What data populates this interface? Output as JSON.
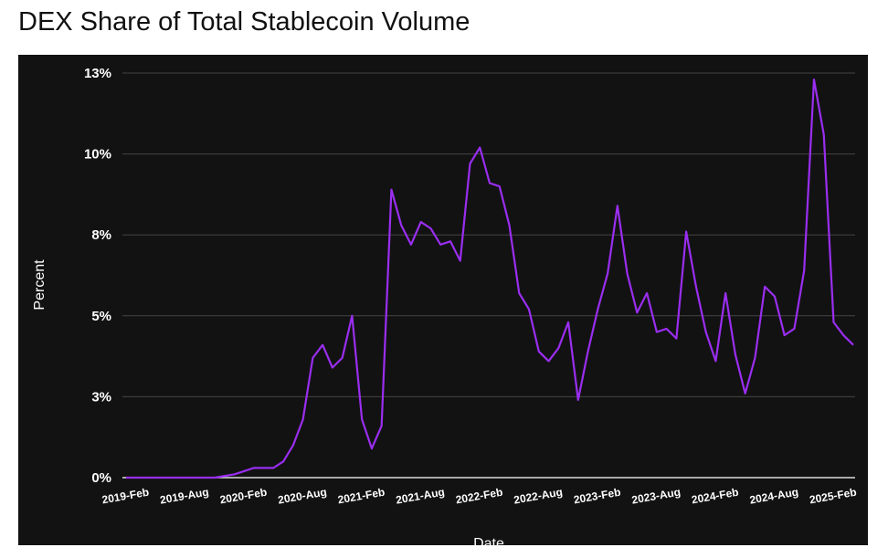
{
  "chart_data": {
    "type": "line",
    "title": "DEX Share of Total Stablecoin Volume",
    "x_label": "Date",
    "y_label": "Percent",
    "categories": [
      "2019-Feb",
      null,
      null,
      null,
      null,
      null,
      "2019-Aug",
      null,
      null,
      null,
      null,
      null,
      "2020-Feb",
      null,
      null,
      null,
      null,
      null,
      "2020-Aug",
      null,
      null,
      null,
      null,
      null,
      "2021-Feb",
      null,
      null,
      null,
      null,
      null,
      "2021-Aug",
      null,
      null,
      null,
      null,
      null,
      "2022-Feb",
      null,
      null,
      null,
      null,
      null,
      "2022-Aug",
      null,
      null,
      null,
      null,
      null,
      "2023-Feb",
      null,
      null,
      null,
      null,
      null,
      "2023-Aug",
      null,
      null,
      null,
      null,
      null,
      "2024-Feb",
      null,
      null,
      null,
      null,
      null,
      "2024-Aug",
      null,
      null,
      null,
      null,
      null,
      "2025-Feb",
      null,
      null
    ],
    "series": [
      {
        "name": "DEX share",
        "color": "#9a2ef0",
        "values": [
          0,
          0,
          0,
          0,
          0,
          0,
          0,
          0,
          0,
          0,
          0.05,
          0.1,
          0.2,
          0.3,
          0.3,
          0.3,
          0.5,
          1.0,
          1.8,
          3.7,
          4.1,
          3.4,
          3.7,
          5.0,
          1.8,
          0.9,
          1.6,
          8.9,
          7.8,
          7.2,
          7.9,
          7.7,
          7.2,
          7.3,
          6.7,
          9.7,
          10.2,
          9.1,
          9.0,
          7.8,
          5.7,
          5.2,
          3.9,
          3.6,
          4.0,
          4.8,
          2.4,
          3.9,
          5.2,
          6.3,
          8.4,
          6.3,
          5.1,
          5.7,
          4.5,
          4.6,
          4.3,
          7.6,
          5.9,
          4.5,
          3.6,
          5.7,
          3.8,
          2.6,
          3.7,
          5.9,
          5.6,
          4.4,
          4.6,
          6.4,
          12.3,
          10.6,
          4.8,
          4.4,
          4.1
        ]
      }
    ],
    "ylim": [
      0,
      12.5
    ],
    "yticks": [
      {
        "value": 0,
        "label": "0%"
      },
      {
        "value": 2.5,
        "label": "3%"
      },
      {
        "value": 5,
        "label": "5%"
      },
      {
        "value": 7.5,
        "label": "8%"
      },
      {
        "value": 10,
        "label": "10%"
      },
      {
        "value": 12.5,
        "label": "13%"
      }
    ],
    "grid": true
  }
}
